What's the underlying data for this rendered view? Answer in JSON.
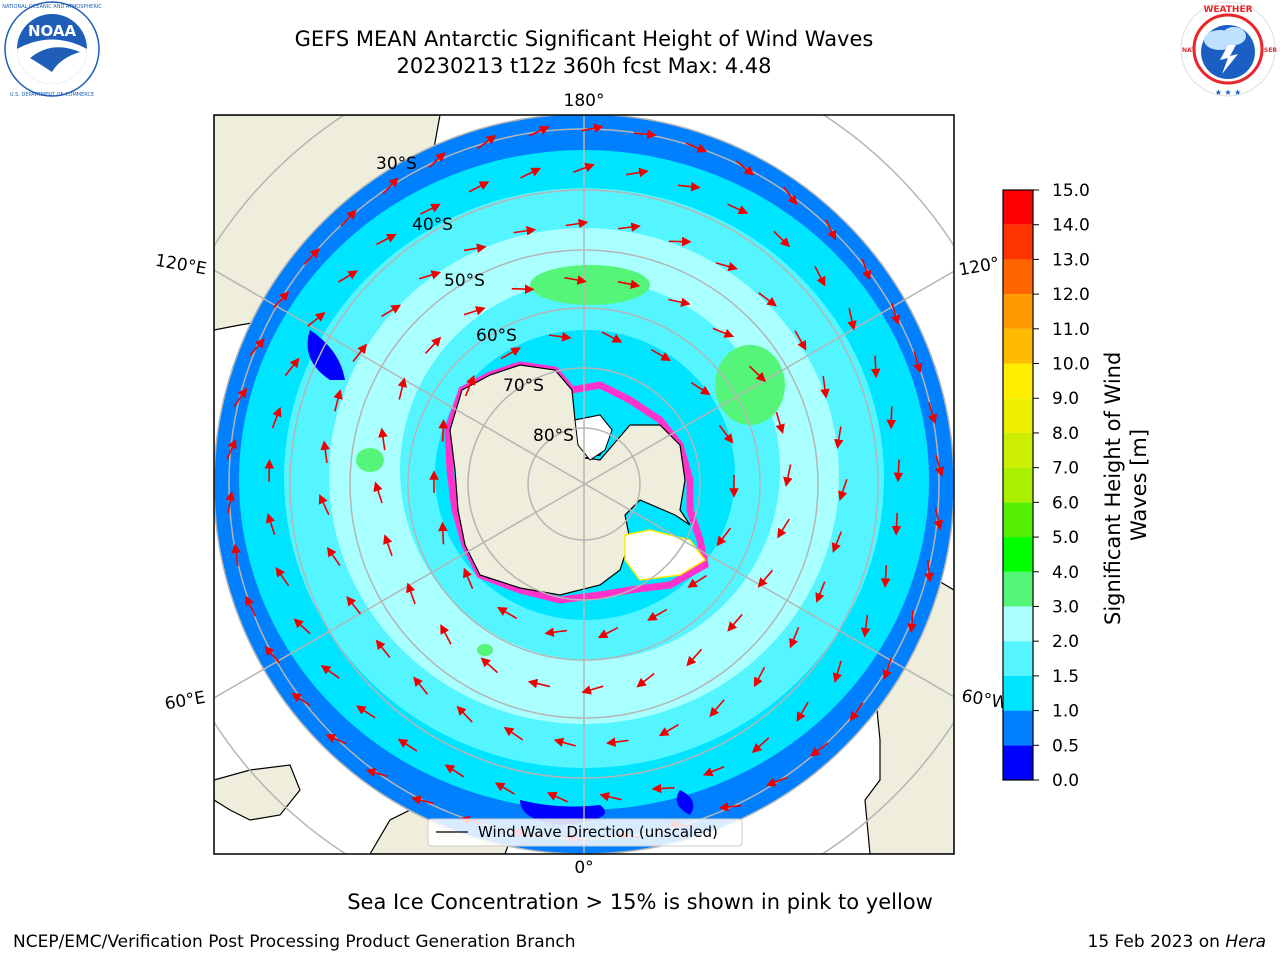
{
  "title_line1": "GEFS MEAN Antarctic Significant Height of Wind Waves",
  "title_line2": "20230213 t12z 360h fcst   Max: 4.48",
  "logos": {
    "left": {
      "name": "noaa-logo",
      "text": "NOAA",
      "ring_text": "NATIONAL OCEANIC AND ATMOSPHERIC ADMINISTRATION · U.S. DEPARTMENT OF COMMERCE",
      "color": "#1e5eb8"
    },
    "right": {
      "name": "nws-logo",
      "ring_text": "NATIONAL WEATHER SERVICE",
      "color": "#e8262b"
    }
  },
  "map": {
    "projection": "south-polar-stereographic",
    "longitude_labels": [
      "180°",
      "120°E",
      "120°",
      "60°E",
      "60°W",
      "0°"
    ],
    "latitude_labels": [
      "30°S",
      "40°S",
      "50°S",
      "60°S",
      "70°S",
      "80°S"
    ],
    "legend_label": "Wind Wave Direction (unscaled)",
    "colors": {
      "land": "#efeddb",
      "ice_edge": "#ff33cc",
      "arrow": "#ee0000",
      "grid": "#b5b5b5"
    }
  },
  "colorbar": {
    "label": "Significant Height of Wind Waves [m]",
    "ticks": [
      "0.0",
      "0.5",
      "1.0",
      "1.5",
      "2.0",
      "3.0",
      "4.0",
      "5.0",
      "6.0",
      "7.0",
      "8.0",
      "9.0",
      "10.0",
      "11.0",
      "12.0",
      "13.0",
      "14.0",
      "15.0"
    ],
    "colors": [
      "#0000ff",
      "#0080ff",
      "#00e5ff",
      "#55f5ff",
      "#aaffff",
      "#55f57a",
      "#00ff00",
      "#55ee00",
      "#aaee00",
      "#ccee00",
      "#eeee00",
      "#ffee00",
      "#ffbb00",
      "#ff9900",
      "#ff6600",
      "#ff3300",
      "#ff0000"
    ]
  },
  "caption": "Sea Ice Concentration > 15% is shown in pink to yellow",
  "footer_left": "NCEP/EMC/Verification Post Processing Product Generation Branch",
  "footer_date": "15 Feb 2023 on ",
  "footer_host": "Hera"
}
